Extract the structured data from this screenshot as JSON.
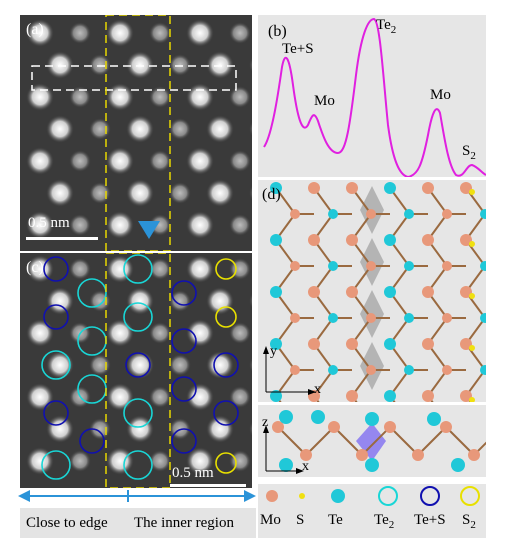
{
  "panels": {
    "a": {
      "label": "(a)",
      "scale": "0.5 nm"
    },
    "b": {
      "label": "(b)",
      "peaks": [
        "Te+S",
        "Mo",
        "Te",
        "Mo",
        "S"
      ],
      "peak_subs": {
        "te2": "2",
        "s2": "2"
      }
    },
    "c": {
      "label": "(c)",
      "scale": "0.5 nm"
    },
    "d": {
      "label": "(d)",
      "axes_top": [
        "y",
        "x"
      ],
      "axes_side": [
        "z",
        "x"
      ]
    }
  },
  "legend": {
    "items": [
      "Mo",
      "S",
      "Te",
      "Te",
      "Te+S",
      "S"
    ],
    "subs": {
      "te2": "2",
      "s2": "2"
    }
  },
  "bottom": {
    "left": "Close to edge",
    "right": "The inner region"
  },
  "colors": {
    "mo": "#e8987a",
    "s": "#f0e010",
    "te": "#20c8d8",
    "te2_ring": "#19d6d6",
    "teS_ring": "#1010b0",
    "s2_ring": "#e8e000",
    "profile": "#e020e0",
    "dashed_box": "#e8d800",
    "arrow": "#2b93d8"
  }
}
